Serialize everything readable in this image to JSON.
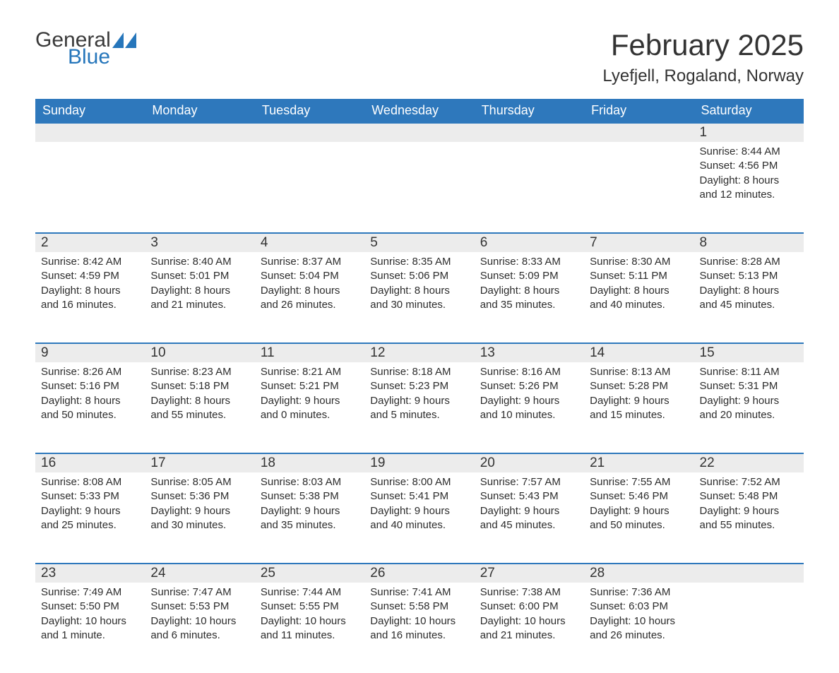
{
  "brand": {
    "text1": "General",
    "text2": "Blue",
    "accent_color": "#2676bb"
  },
  "title": "February 2025",
  "location": "Lyefjell, Rogaland, Norway",
  "colors": {
    "header_bg": "#2e78bc",
    "header_text": "#ffffff",
    "daynum_bg": "#ececec",
    "daynum_border": "#2e78bc",
    "body_text": "#2c2c2c",
    "page_bg": "#ffffff"
  },
  "fonts": {
    "title_size": 42,
    "location_size": 24,
    "th_size": 18,
    "daynum_size": 19,
    "cell_size": 15
  },
  "weekdays": [
    "Sunday",
    "Monday",
    "Tuesday",
    "Wednesday",
    "Thursday",
    "Friday",
    "Saturday"
  ],
  "weeks": [
    [
      null,
      null,
      null,
      null,
      null,
      null,
      {
        "n": "1",
        "sunrise": "Sunrise: 8:44 AM",
        "sunset": "Sunset: 4:56 PM",
        "daylight": "Daylight: 8 hours and 12 minutes."
      }
    ],
    [
      {
        "n": "2",
        "sunrise": "Sunrise: 8:42 AM",
        "sunset": "Sunset: 4:59 PM",
        "daylight": "Daylight: 8 hours and 16 minutes."
      },
      {
        "n": "3",
        "sunrise": "Sunrise: 8:40 AM",
        "sunset": "Sunset: 5:01 PM",
        "daylight": "Daylight: 8 hours and 21 minutes."
      },
      {
        "n": "4",
        "sunrise": "Sunrise: 8:37 AM",
        "sunset": "Sunset: 5:04 PM",
        "daylight": "Daylight: 8 hours and 26 minutes."
      },
      {
        "n": "5",
        "sunrise": "Sunrise: 8:35 AM",
        "sunset": "Sunset: 5:06 PM",
        "daylight": "Daylight: 8 hours and 30 minutes."
      },
      {
        "n": "6",
        "sunrise": "Sunrise: 8:33 AM",
        "sunset": "Sunset: 5:09 PM",
        "daylight": "Daylight: 8 hours and 35 minutes."
      },
      {
        "n": "7",
        "sunrise": "Sunrise: 8:30 AM",
        "sunset": "Sunset: 5:11 PM",
        "daylight": "Daylight: 8 hours and 40 minutes."
      },
      {
        "n": "8",
        "sunrise": "Sunrise: 8:28 AM",
        "sunset": "Sunset: 5:13 PM",
        "daylight": "Daylight: 8 hours and 45 minutes."
      }
    ],
    [
      {
        "n": "9",
        "sunrise": "Sunrise: 8:26 AM",
        "sunset": "Sunset: 5:16 PM",
        "daylight": "Daylight: 8 hours and 50 minutes."
      },
      {
        "n": "10",
        "sunrise": "Sunrise: 8:23 AM",
        "sunset": "Sunset: 5:18 PM",
        "daylight": "Daylight: 8 hours and 55 minutes."
      },
      {
        "n": "11",
        "sunrise": "Sunrise: 8:21 AM",
        "sunset": "Sunset: 5:21 PM",
        "daylight": "Daylight: 9 hours and 0 minutes."
      },
      {
        "n": "12",
        "sunrise": "Sunrise: 8:18 AM",
        "sunset": "Sunset: 5:23 PM",
        "daylight": "Daylight: 9 hours and 5 minutes."
      },
      {
        "n": "13",
        "sunrise": "Sunrise: 8:16 AM",
        "sunset": "Sunset: 5:26 PM",
        "daylight": "Daylight: 9 hours and 10 minutes."
      },
      {
        "n": "14",
        "sunrise": "Sunrise: 8:13 AM",
        "sunset": "Sunset: 5:28 PM",
        "daylight": "Daylight: 9 hours and 15 minutes."
      },
      {
        "n": "15",
        "sunrise": "Sunrise: 8:11 AM",
        "sunset": "Sunset: 5:31 PM",
        "daylight": "Daylight: 9 hours and 20 minutes."
      }
    ],
    [
      {
        "n": "16",
        "sunrise": "Sunrise: 8:08 AM",
        "sunset": "Sunset: 5:33 PM",
        "daylight": "Daylight: 9 hours and 25 minutes."
      },
      {
        "n": "17",
        "sunrise": "Sunrise: 8:05 AM",
        "sunset": "Sunset: 5:36 PM",
        "daylight": "Daylight: 9 hours and 30 minutes."
      },
      {
        "n": "18",
        "sunrise": "Sunrise: 8:03 AM",
        "sunset": "Sunset: 5:38 PM",
        "daylight": "Daylight: 9 hours and 35 minutes."
      },
      {
        "n": "19",
        "sunrise": "Sunrise: 8:00 AM",
        "sunset": "Sunset: 5:41 PM",
        "daylight": "Daylight: 9 hours and 40 minutes."
      },
      {
        "n": "20",
        "sunrise": "Sunrise: 7:57 AM",
        "sunset": "Sunset: 5:43 PM",
        "daylight": "Daylight: 9 hours and 45 minutes."
      },
      {
        "n": "21",
        "sunrise": "Sunrise: 7:55 AM",
        "sunset": "Sunset: 5:46 PM",
        "daylight": "Daylight: 9 hours and 50 minutes."
      },
      {
        "n": "22",
        "sunrise": "Sunrise: 7:52 AM",
        "sunset": "Sunset: 5:48 PM",
        "daylight": "Daylight: 9 hours and 55 minutes."
      }
    ],
    [
      {
        "n": "23",
        "sunrise": "Sunrise: 7:49 AM",
        "sunset": "Sunset: 5:50 PM",
        "daylight": "Daylight: 10 hours and 1 minute."
      },
      {
        "n": "24",
        "sunrise": "Sunrise: 7:47 AM",
        "sunset": "Sunset: 5:53 PM",
        "daylight": "Daylight: 10 hours and 6 minutes."
      },
      {
        "n": "25",
        "sunrise": "Sunrise: 7:44 AM",
        "sunset": "Sunset: 5:55 PM",
        "daylight": "Daylight: 10 hours and 11 minutes."
      },
      {
        "n": "26",
        "sunrise": "Sunrise: 7:41 AM",
        "sunset": "Sunset: 5:58 PM",
        "daylight": "Daylight: 10 hours and 16 minutes."
      },
      {
        "n": "27",
        "sunrise": "Sunrise: 7:38 AM",
        "sunset": "Sunset: 6:00 PM",
        "daylight": "Daylight: 10 hours and 21 minutes."
      },
      {
        "n": "28",
        "sunrise": "Sunrise: 7:36 AM",
        "sunset": "Sunset: 6:03 PM",
        "daylight": "Daylight: 10 hours and 26 minutes."
      },
      null
    ]
  ]
}
